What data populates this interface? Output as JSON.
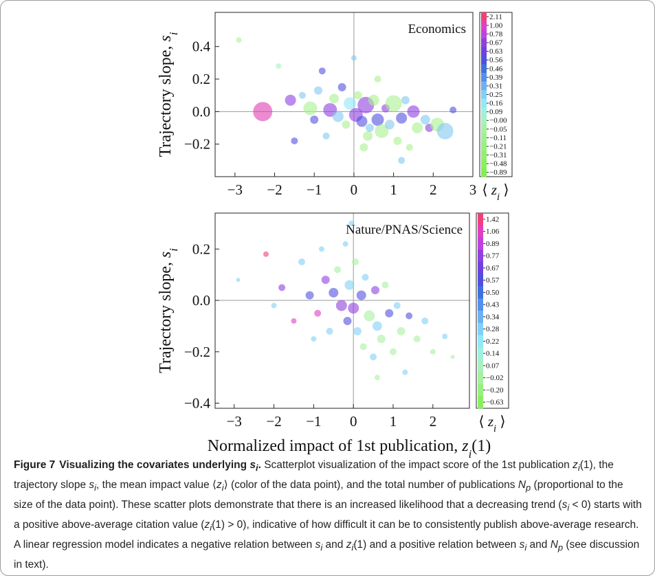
{
  "chart_data": [
    {
      "type": "scatter",
      "annotation": "Economics",
      "ylabel": [
        "Trajectory slope, ",
        {
          "i": "s",
          "sub": "i"
        }
      ],
      "xlim": [
        -3.5,
        3.0
      ],
      "ylim": [
        -0.4,
        0.61
      ],
      "xticks": [
        {
          "value": -3,
          "label": "−3"
        },
        {
          "value": -2,
          "label": "−2"
        },
        {
          "value": -1,
          "label": "−1"
        },
        0,
        1,
        2,
        3
      ],
      "yticks": [
        {
          "value": -0.2,
          "label": "−0.2"
        },
        {
          "value": 0,
          "label": "0.0"
        },
        0.2,
        0.4
      ],
      "zero_lines": true,
      "series": [
        {
          "x": [
            -2.9,
            -2.3,
            -1.9,
            -1.6,
            -1.3,
            -1.1,
            -1.0,
            -0.9,
            -0.8,
            -0.6,
            -0.5,
            -0.4,
            -0.3,
            -0.2,
            -0.1,
            0.0,
            0.05,
            0.1,
            0.2,
            0.3,
            0.35,
            0.4,
            0.5,
            0.6,
            0.7,
            0.8,
            0.9,
            1.0,
            1.1,
            1.2,
            1.3,
            1.4,
            1.5,
            1.6,
            1.8,
            1.9,
            2.1,
            2.3,
            2.5,
            1.2,
            -0.7,
            0.6,
            -1.5,
            0.25
          ],
          "values": [
            0.44,
            0.0,
            0.28,
            0.07,
            0.1,
            0.02,
            -0.05,
            0.13,
            0.25,
            0.01,
            0.08,
            -0.03,
            0.15,
            -0.08,
            0.05,
            0.33,
            -0.02,
            0.1,
            -0.06,
            0.04,
            -0.15,
            -0.1,
            0.07,
            -0.05,
            -0.12,
            0.02,
            -0.08,
            0.05,
            -0.18,
            -0.04,
            0.07,
            -0.22,
            0.0,
            -0.1,
            -0.05,
            -0.1,
            -0.08,
            -0.12,
            0.01,
            -0.3,
            -0.15,
            0.2,
            -0.18,
            -0.22
          ],
          "sizes": [
            4,
            14,
            4,
            8,
            5,
            10,
            6,
            6,
            5,
            10,
            7,
            8,
            6,
            6,
            9,
            4,
            10,
            6,
            8,
            12,
            7,
            6,
            8,
            9,
            10,
            6,
            7,
            12,
            6,
            8,
            6,
            5,
            9,
            8,
            7,
            6,
            10,
            12,
            5,
            5,
            5,
            5,
            5,
            6
          ],
          "colors": [
            "#a8f090",
            "#e040b0",
            "#a8f0c0",
            "#9040e0",
            "#80c8f0",
            "#a8f090",
            "#5050e0",
            "#80c8f0",
            "#5050e0",
            "#9040e0",
            "#a8f090",
            "#80c8f0",
            "#5050e0",
            "#a8f090",
            "#90e8f8",
            "#80c8f0",
            "#9040e0",
            "#a8f090",
            "#5050e0",
            "#9040e0",
            "#a8f090",
            "#80c8f0",
            "#a8f090",
            "#5050e0",
            "#a8f090",
            "#9040e0",
            "#80c8f0",
            "#a8f090",
            "#a8f090",
            "#5050e0",
            "#80c8f0",
            "#a8f090",
            "#9040e0",
            "#a8f090",
            "#80c8f0",
            "#9040e0",
            "#a8f090",
            "#80c8f0",
            "#5050e0",
            "#80c8f0",
            "#80c8f0",
            "#a8f090",
            "#5050e0",
            "#a8f090"
          ]
        }
      ],
      "colorbar": {
        "label": [
          "⟨ ",
          {
            "i": "z",
            "sub": "i"
          },
          " ⟩"
        ],
        "ticks": [
          2.11,
          {
            "value": 1,
            "label": "1.00"
          },
          0.78,
          0.67,
          0.63,
          0.56,
          0.46,
          0.39,
          0.31,
          0.25,
          0.16,
          0.09,
          {
            "value": 0,
            "label": "−0.00"
          },
          {
            "value": -0.05,
            "label": "−0.05"
          },
          {
            "value": -0.11,
            "label": "−0.11"
          },
          {
            "value": -0.21,
            "label": "−0.21"
          },
          {
            "value": -0.31,
            "label": "−0.31"
          },
          {
            "value": -0.48,
            "label": "−0.48"
          },
          {
            "value": -0.89,
            "label": "−0.89"
          }
        ],
        "colors": [
          "#f0407a",
          "#e040c0",
          "#c040e0",
          "#9040e0",
          "#7040e0",
          "#5050e0",
          "#4070e0",
          "#5090f0",
          "#70b0f0",
          "#80d0f8",
          "#90e8f8",
          "#a0f0e0",
          "#a8f0c0",
          "#a8f0a0",
          "#a0f090",
          "#98f080",
          "#90f070",
          "#88f060",
          "#80f050"
        ]
      }
    },
    {
      "type": "scatter",
      "annotation": "Nature/PNAS/Science",
      "ylabel": [
        "Trajectory slope, ",
        {
          "i": "s",
          "sub": "i"
        }
      ],
      "xlabel": [
        "Normalized impact of 1st publication, ",
        {
          "i": "z",
          "sub": "i"
        },
        "(1)"
      ],
      "xlim": [
        -3.48,
        2.92
      ],
      "ylim": [
        -0.42,
        0.34
      ],
      "xticks": [
        {
          "value": -3,
          "label": "−3"
        },
        {
          "value": -2,
          "label": "−2"
        },
        {
          "value": -1,
          "label": "−1"
        },
        0,
        1,
        2
      ],
      "yticks": [
        {
          "value": -0.4,
          "label": "−0.4"
        },
        {
          "value": -0.2,
          "label": "−0.2"
        },
        {
          "value": 0,
          "label": "0.0"
        },
        0.2
      ],
      "zero_lines": true,
      "series": [
        {
          "x": [
            -2.9,
            -2.2,
            -2.0,
            -1.8,
            -1.5,
            -1.3,
            -1.1,
            -0.9,
            -0.8,
            -0.7,
            -0.6,
            -0.5,
            -0.4,
            -0.3,
            -0.2,
            -0.15,
            -0.1,
            0.0,
            0.05,
            0.1,
            0.2,
            0.25,
            0.3,
            0.4,
            0.5,
            0.55,
            0.6,
            0.7,
            0.8,
            0.9,
            1.0,
            1.1,
            1.2,
            1.3,
            1.4,
            1.6,
            1.8,
            2.0,
            2.3,
            2.5,
            -0.05,
            0.6,
            -1.0
          ],
          "values": [
            0.08,
            0.18,
            -0.02,
            0.05,
            -0.08,
            0.15,
            0.02,
            -0.05,
            0.2,
            0.08,
            -0.12,
            0.03,
            0.12,
            -0.02,
            0.22,
            -0.08,
            0.06,
            -0.03,
            0.15,
            -0.12,
            0.02,
            -0.18,
            0.09,
            -0.06,
            -0.22,
            0.04,
            -0.1,
            -0.15,
            0.06,
            -0.05,
            -0.2,
            -0.02,
            -0.12,
            -0.28,
            -0.06,
            -0.15,
            -0.08,
            -0.2,
            -0.14,
            -0.22,
            0.3,
            -0.3,
            -0.15
          ],
          "sizes": [
            3,
            4,
            4,
            5,
            4,
            5,
            6,
            5,
            4,
            6,
            5,
            7,
            5,
            8,
            4,
            6,
            7,
            8,
            5,
            6,
            7,
            5,
            5,
            8,
            5,
            6,
            7,
            6,
            5,
            6,
            5,
            5,
            6,
            4,
            5,
            5,
            5,
            4,
            4,
            3,
            4,
            4,
            4
          ],
          "colors": [
            "#80d0f8",
            "#f0407a",
            "#80d0f8",
            "#9040e0",
            "#e040c0",
            "#80d0f8",
            "#5050e0",
            "#e040c0",
            "#80d0f8",
            "#9040e0",
            "#80d0f8",
            "#5050e0",
            "#a8f0a0",
            "#9040e0",
            "#80d0f8",
            "#5050e0",
            "#80d0f8",
            "#9040e0",
            "#a8f0a0",
            "#80d0f8",
            "#5050e0",
            "#a8f0a0",
            "#80d0f8",
            "#a8f0a0",
            "#80d0f8",
            "#9040e0",
            "#80d0f8",
            "#a8f0a0",
            "#a8f0a0",
            "#5050e0",
            "#a8f0a0",
            "#80d0f8",
            "#a8f0a0",
            "#80d0f8",
            "#5050e0",
            "#a8f0a0",
            "#80d0f8",
            "#a8f0a0",
            "#80d0f8",
            "#a8f0a0",
            "#80d0f8",
            "#a8f0a0",
            "#80d0f8"
          ]
        }
      ],
      "colorbar": {
        "label": [
          "⟨ ",
          {
            "i": "z",
            "sub": "i"
          },
          " ⟩"
        ],
        "ticks": [
          1.42,
          1.06,
          0.89,
          0.77,
          0.67,
          0.57,
          {
            "value": 0.5,
            "label": "0.50"
          },
          0.43,
          0.34,
          0.28,
          0.22,
          0.14,
          0.07,
          {
            "value": -0.02,
            "label": "−0.02"
          },
          {
            "value": -0.2,
            "label": "−0.20"
          },
          {
            "value": -0.63,
            "label": "−0.63"
          }
        ],
        "colors": [
          "#f0407a",
          "#e040c0",
          "#c040e0",
          "#9040e0",
          "#7040e0",
          "#5050e0",
          "#4070e0",
          "#5090f0",
          "#70b0f0",
          "#80d0f8",
          "#90e8f8",
          "#a0f0e0",
          "#a8f0c0",
          "#a8f0a0",
          "#98f080",
          "#88f060"
        ]
      }
    }
  ],
  "caption": {
    "label": "Figure 7",
    "heading": [
      "Visualizing the covariates underlying ",
      {
        "i": "s",
        "sub": "i"
      },
      "."
    ],
    "body": [
      "Scatterplot visualization of the impact score of the 1st publication ",
      {
        "i": "z",
        "sub": "i"
      },
      "(1), the trajectory slope ",
      {
        "i": "s",
        "sub": "i"
      },
      ", the mean impact value ⟨",
      {
        "i": "z",
        "sub": "i"
      },
      "⟩ (color of the data point), and the total number of publications ",
      {
        "i": "N",
        "sub": "p"
      },
      " (proportional to the size of the data point). These scatter plots demonstrate that there is an increased likelihood that a decreasing trend (",
      {
        "i": "s",
        "sub": "i"
      },
      " < 0) starts with a positive above-average citation value (",
      {
        "i": "z",
        "sub": "i"
      },
      "(1) > 0), indicative of how difficult it can be to consistently publish above-average research. A linear regression model indicates a negative relation between ",
      {
        "i": "s",
        "sub": "i"
      },
      " and ",
      {
        "i": "z",
        "sub": "i"
      },
      "(1) and a positive relation between ",
      {
        "i": "s",
        "sub": "i"
      },
      " and ",
      {
        "i": "N",
        "sub": "p"
      },
      " (see discussion in text)."
    ]
  }
}
